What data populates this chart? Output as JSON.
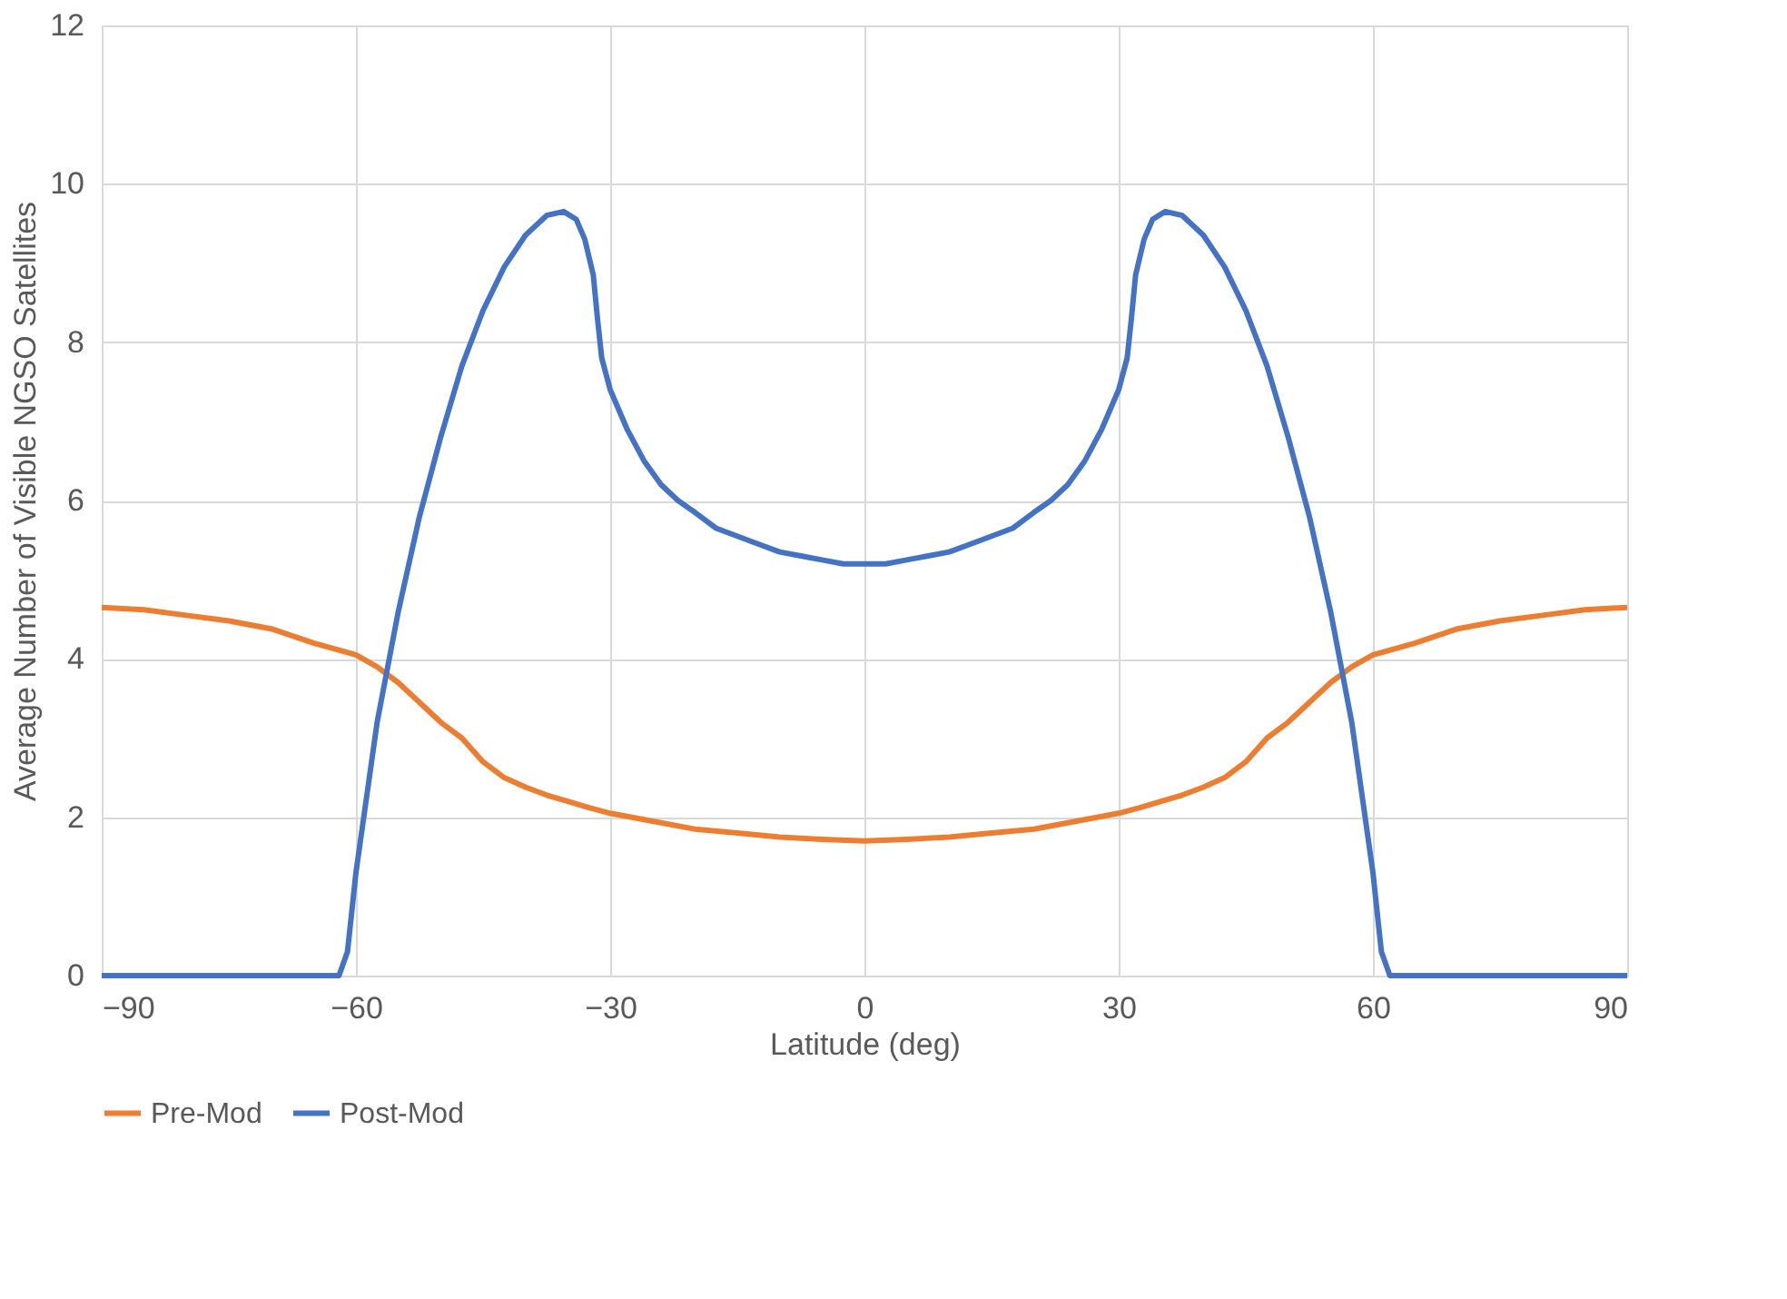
{
  "chart_data": {
    "type": "line",
    "xlabel": "Latitude (deg)",
    "ylabel": "Average Number of Visible NGSO Satellites",
    "xlim": [
      -90,
      90
    ],
    "xticks": [
      -90,
      -60,
      -30,
      0,
      30,
      60,
      90
    ],
    "ylim": [
      0,
      12
    ],
    "yticks": [
      0,
      2,
      4,
      6,
      8,
      10,
      12
    ],
    "grid": true,
    "legend": "bottom",
    "marker": "none",
    "line_style": "solid",
    "series": [
      {
        "name": "Pre-Mod",
        "color": "#ed7d31",
        "x": [
          -90,
          -85,
          -80,
          -75,
          -70,
          -65,
          -60,
          -57.5,
          -55,
          -52.5,
          -50,
          -47.5,
          -45,
          -42.5,
          -40,
          -37.5,
          -35,
          -32.5,
          -30,
          -25,
          -20,
          -15,
          -10,
          -5,
          0,
          5,
          10,
          15,
          20,
          25,
          30,
          32.5,
          35,
          37.5,
          40,
          42.5,
          45,
          47.5,
          50,
          52.5,
          55,
          57.5,
          60,
          65,
          70,
          75,
          80,
          85,
          90
        ],
        "values": [
          4.65,
          4.62,
          4.55,
          4.48,
          4.38,
          4.2,
          4.05,
          3.9,
          3.7,
          3.45,
          3.2,
          3.0,
          2.7,
          2.5,
          2.38,
          2.28,
          2.2,
          2.12,
          2.05,
          1.95,
          1.85,
          1.8,
          1.75,
          1.72,
          1.7,
          1.72,
          1.75,
          1.8,
          1.85,
          1.95,
          2.05,
          2.12,
          2.2,
          2.28,
          2.38,
          2.5,
          2.7,
          3.0,
          3.2,
          3.45,
          3.7,
          3.9,
          4.05,
          4.2,
          4.38,
          4.48,
          4.55,
          4.62,
          4.65
        ]
      },
      {
        "name": "Post-Mod",
        "color": "#4472c4",
        "x": [
          -90,
          -62,
          -61,
          -60,
          -57.5,
          -55,
          -52.5,
          -50,
          -47.5,
          -45,
          -42.5,
          -40,
          -37.5,
          -35.5,
          -34,
          -33,
          -32,
          -31.5,
          -31,
          -30,
          -28,
          -26,
          -24,
          -22,
          -20,
          -17.5,
          -15,
          -12.5,
          -10,
          -7.5,
          -5,
          -2.5,
          0,
          2.5,
          5,
          7.5,
          10,
          12.5,
          15,
          17.5,
          20,
          22,
          24,
          26,
          28,
          30,
          31,
          31.5,
          32,
          33,
          34,
          35.5,
          37.5,
          40,
          42.5,
          45,
          47.5,
          50,
          52.5,
          55,
          57.5,
          60,
          61,
          62,
          90
        ],
        "values": [
          0,
          0,
          0.3,
          1.3,
          3.2,
          4.6,
          5.8,
          6.8,
          7.7,
          8.4,
          8.95,
          9.35,
          9.6,
          9.65,
          9.55,
          9.3,
          8.85,
          8.3,
          7.8,
          7.4,
          6.9,
          6.5,
          6.2,
          6.0,
          5.85,
          5.65,
          5.55,
          5.45,
          5.35,
          5.3,
          5.25,
          5.2,
          5.2,
          5.2,
          5.25,
          5.3,
          5.35,
          5.45,
          5.55,
          5.65,
          5.85,
          6.0,
          6.2,
          6.5,
          6.9,
          7.4,
          7.8,
          8.3,
          8.85,
          9.3,
          9.55,
          9.65,
          9.6,
          9.35,
          8.95,
          8.4,
          7.7,
          6.8,
          5.8,
          4.6,
          3.2,
          1.3,
          0.3,
          0,
          0
        ]
      }
    ]
  }
}
